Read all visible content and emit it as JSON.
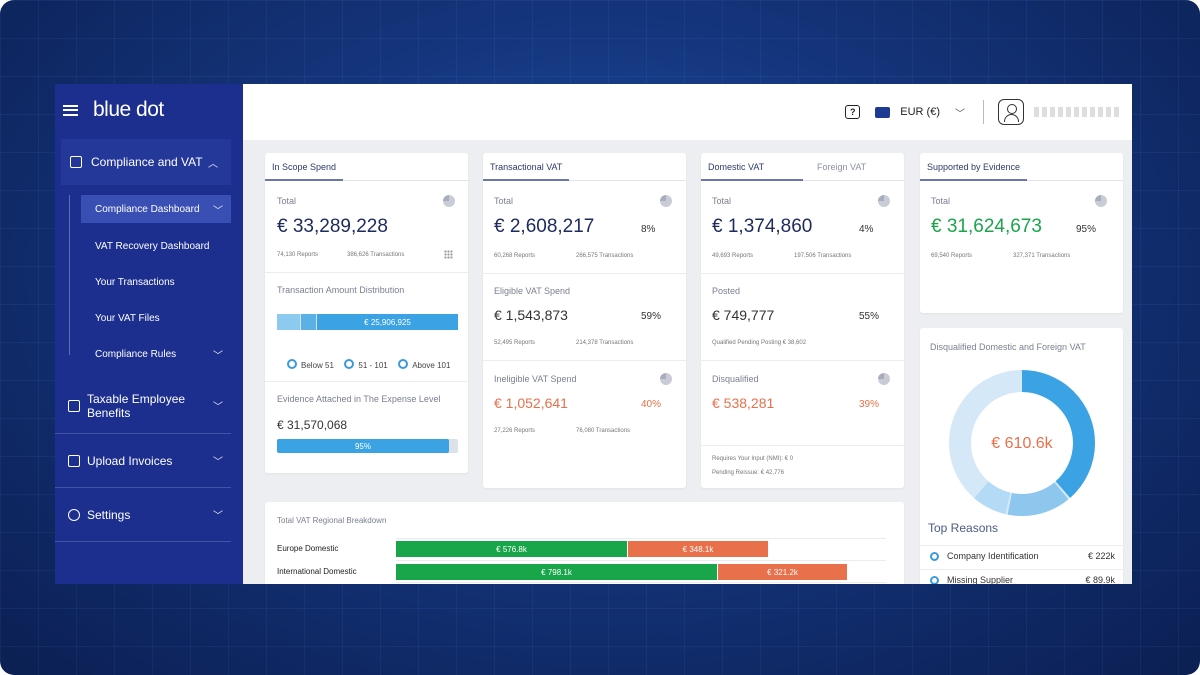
{
  "brand": "blue dot",
  "sidebar": {
    "top_item": "Compliance and VAT",
    "sub_items": [
      {
        "label": "Compliance Dashboard"
      },
      {
        "label": "VAT Recovery Dashboard"
      },
      {
        "label": "Your Transactions"
      },
      {
        "label": "Your VAT Files"
      },
      {
        "label": "Compliance Rules"
      }
    ],
    "main_items": [
      {
        "label": "Taxable Employee Benefits"
      },
      {
        "label": "Upload Invoices"
      },
      {
        "label": "Settings"
      }
    ]
  },
  "topbar": {
    "currency": "EUR (€)",
    "help_icon": "?"
  },
  "cards": {
    "in_scope": {
      "tab": "In Scope Spend",
      "total_label": "Total",
      "total_value": "€ 33,289,228",
      "reports": "74,130 Reports",
      "transactions": "386,626 Transactions",
      "dist_label": "Transaction Amount Distribution",
      "dist_bar_value": "€ 25,906,925",
      "legend": [
        "Below 51",
        "51 - 101",
        "Above 101"
      ],
      "evidence_label": "Evidence Attached in The Expense Level",
      "evidence_value": "€ 31,570,068",
      "evidence_pct": "95%",
      "evidence_fill": 0.95
    },
    "transactional": {
      "tab": "Transactional VAT",
      "total_label": "Total",
      "total_value": "€ 2,608,217",
      "total_pct": "8%",
      "reports": "60,268 Reports",
      "transactions": "266,575 Transactions",
      "eligible_label": "Eligible VAT Spend",
      "eligible_value": "€ 1,543,873",
      "eligible_pct": "59%",
      "eligible_reports": "52,495 Reports",
      "eligible_transactions": "214,378 Transactions",
      "ineligible_label": "Ineligible VAT Spend",
      "ineligible_value": "€ 1,052,641",
      "ineligible_pct": "40%",
      "ineligible_reports": "27,226 Reports",
      "ineligible_transactions": "76,080 Transactions"
    },
    "domestic": {
      "tab_active": "Domestic VAT",
      "tab_inactive": "Foreign VAT",
      "total_label": "Total",
      "total_value": "€ 1,374,860",
      "total_pct": "4%",
      "reports": "49,693 Reports",
      "transactions": "197,506 Transactions",
      "posted_label": "Posted",
      "posted_value": "€ 749,777",
      "posted_pct": "55%",
      "posted_note": "Qualified Pending Posting € 38,602",
      "disq_label": "Disqualified",
      "disq_value": "€ 538,281",
      "disq_pct": "39%",
      "requires_input": "Requires Your Input (NMI): € 0",
      "pending_reissue": "Pending Reissue: € 42,776"
    },
    "evidence": {
      "tab": "Supported by Evidence",
      "total_label": "Total",
      "total_value": "€ 31,624,673",
      "total_pct": "95%",
      "reports": "69,540 Reports",
      "transactions": "327,371 Transactions"
    },
    "disqualified": {
      "title": "Disqualified Domestic and Foreign VAT",
      "center_value": "€ 610.6k",
      "reasons_title": "Top Reasons",
      "reasons": [
        {
          "label": "Company Identification",
          "value": "€ 222k"
        },
        {
          "label": "Missing Supplier",
          "value": "€ 89.9k"
        }
      ]
    },
    "regional": {
      "title": "Total VAT Regional Breakdown",
      "rows": [
        {
          "label": "Europe Domestic",
          "green": "€ 576.8k",
          "orange": "€ 348.1k"
        },
        {
          "label": "International Domestic",
          "green": "€ 798.1k",
          "orange": "€ 321.2k"
        }
      ]
    }
  },
  "colors": {
    "sidebar": "#1c2f8f",
    "green": "#19a64a",
    "orange": "#e8704a",
    "blue": "#3ba3e3",
    "navy_text": "#1c2a5e"
  }
}
